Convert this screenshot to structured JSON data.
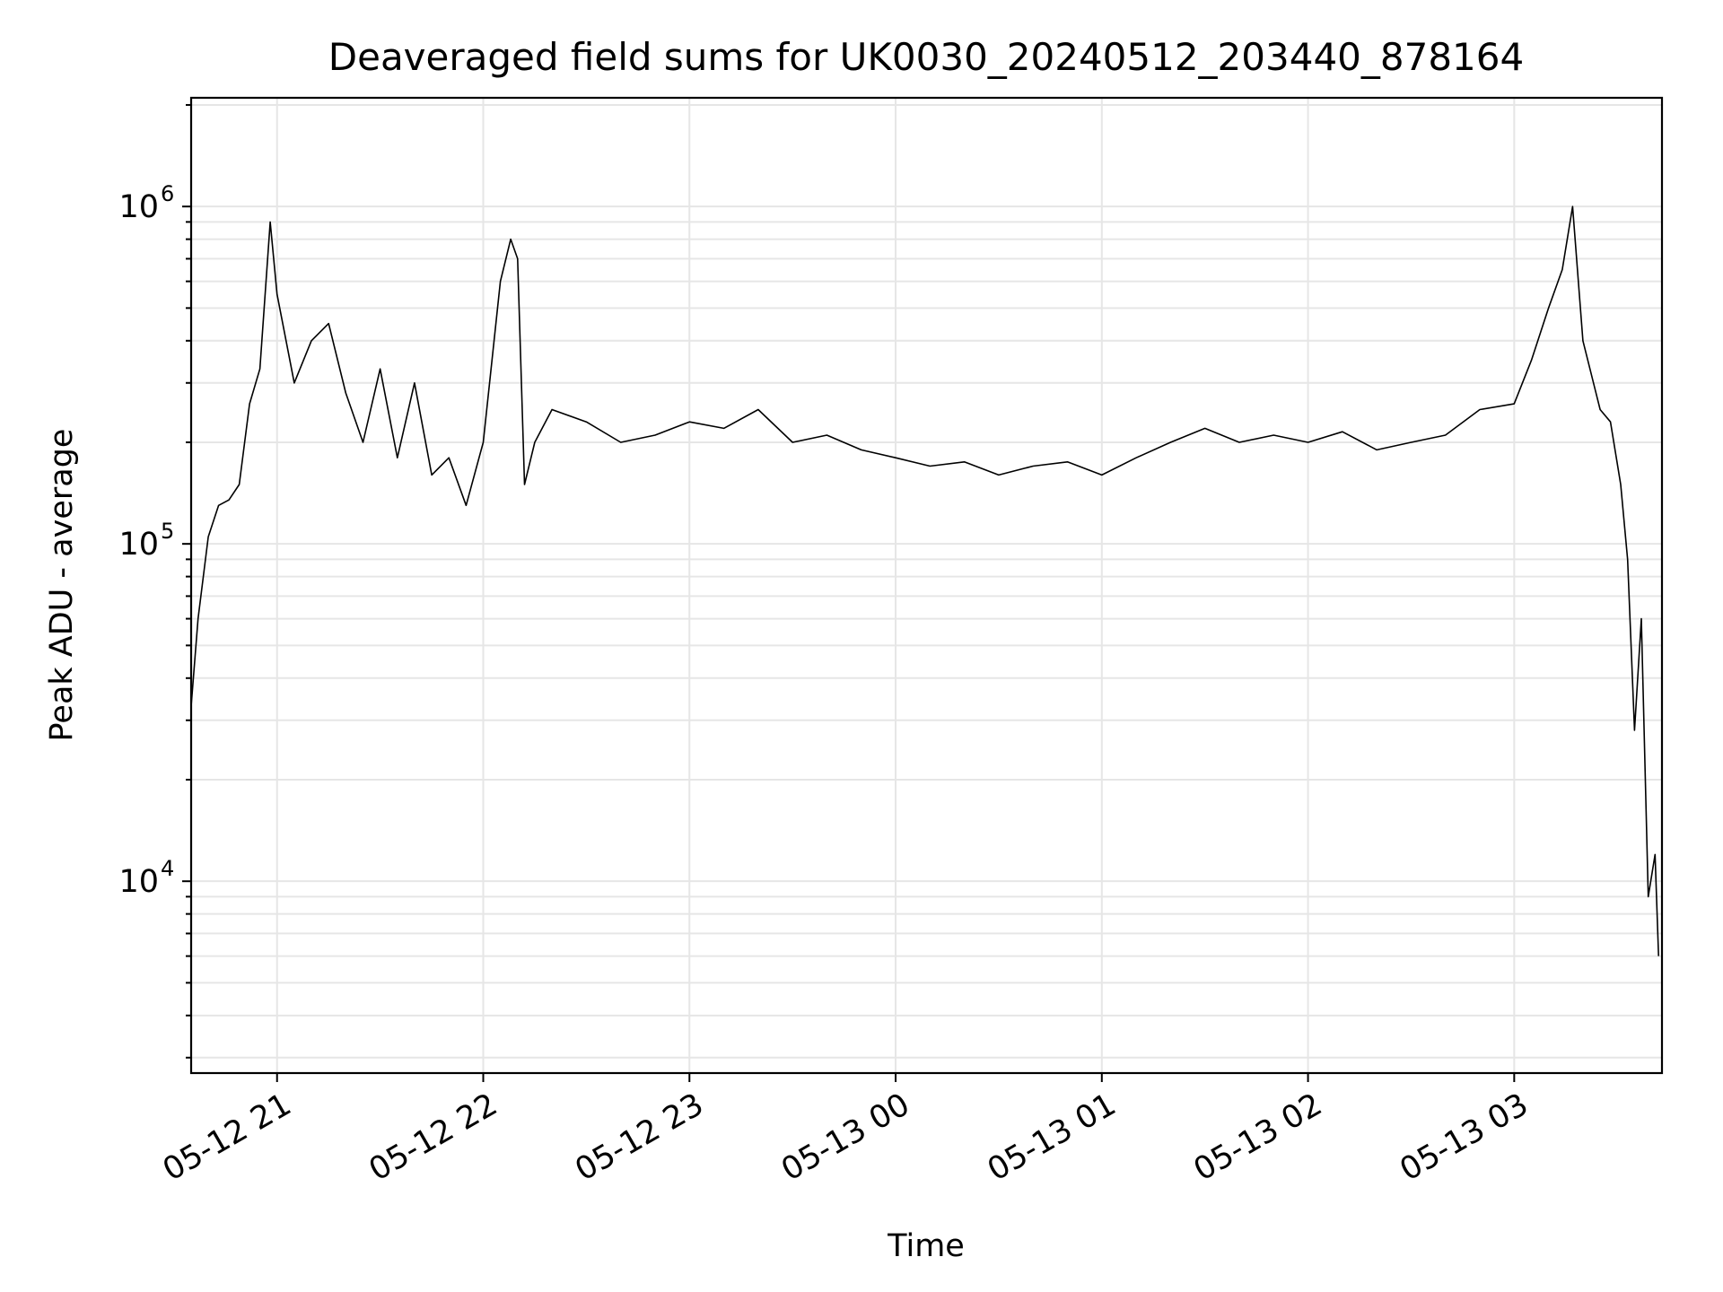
{
  "chart_data": {
    "type": "line",
    "title": "Deaveraged field sums for UK0030_20240512_203440_878164",
    "xlabel": "Time",
    "ylabel": "Peak ADU - average",
    "yscale": "log",
    "grid": true,
    "grid_minor_y": true,
    "line_color": "#000000",
    "xlim": [
      "2024-05-12 20:35",
      "2024-05-13 03:43"
    ],
    "ylim": [
      2700,
      2100000
    ],
    "xticks": [
      {
        "value": "2024-05-12 21:00",
        "label": "05-12 21"
      },
      {
        "value": "2024-05-12 22:00",
        "label": "05-12 22"
      },
      {
        "value": "2024-05-12 23:00",
        "label": "05-12 23"
      },
      {
        "value": "2024-05-13 00:00",
        "label": "05-13 00"
      },
      {
        "value": "2024-05-13 01:00",
        "label": "05-13 01"
      },
      {
        "value": "2024-05-13 02:00",
        "label": "05-13 02"
      },
      {
        "value": "2024-05-13 03:00",
        "label": "05-13 03"
      }
    ],
    "yticks": [
      {
        "value": 10000,
        "base": "10",
        "exp": "4"
      },
      {
        "value": 100000,
        "base": "10",
        "exp": "5"
      },
      {
        "value": 1000000,
        "base": "10",
        "exp": "6"
      }
    ],
    "series": [
      {
        "x": [
          "2024-05-12 20:35",
          "2024-05-12 20:37",
          "2024-05-12 20:40",
          "2024-05-12 20:43",
          "2024-05-12 20:46",
          "2024-05-12 20:49",
          "2024-05-12 20:52",
          "2024-05-12 20:55",
          "2024-05-12 20:58",
          "2024-05-12 21:00",
          "2024-05-12 21:05",
          "2024-05-12 21:10",
          "2024-05-12 21:15",
          "2024-05-12 21:20",
          "2024-05-12 21:25",
          "2024-05-12 21:30",
          "2024-05-12 21:35",
          "2024-05-12 21:40",
          "2024-05-12 21:45",
          "2024-05-12 21:50",
          "2024-05-12 21:55",
          "2024-05-12 22:00",
          "2024-05-12 22:05",
          "2024-05-12 22:08",
          "2024-05-12 22:10",
          "2024-05-12 22:12",
          "2024-05-12 22:15",
          "2024-05-12 22:20",
          "2024-05-12 22:30",
          "2024-05-12 22:40",
          "2024-05-12 22:50",
          "2024-05-12 23:00",
          "2024-05-12 23:10",
          "2024-05-12 23:20",
          "2024-05-12 23:30",
          "2024-05-12 23:40",
          "2024-05-12 23:50",
          "2024-05-13 00:00",
          "2024-05-13 00:10",
          "2024-05-13 00:20",
          "2024-05-13 00:30",
          "2024-05-13 00:40",
          "2024-05-13 00:50",
          "2024-05-13 01:00",
          "2024-05-13 01:10",
          "2024-05-13 01:20",
          "2024-05-13 01:30",
          "2024-05-13 01:40",
          "2024-05-13 01:50",
          "2024-05-13 02:00",
          "2024-05-13 02:10",
          "2024-05-13 02:20",
          "2024-05-13 02:30",
          "2024-05-13 02:40",
          "2024-05-13 02:50",
          "2024-05-13 03:00",
          "2024-05-13 03:05",
          "2024-05-13 03:10",
          "2024-05-13 03:14",
          "2024-05-13 03:17",
          "2024-05-13 03:20",
          "2024-05-13 03:25",
          "2024-05-13 03:28",
          "2024-05-13 03:31",
          "2024-05-13 03:33",
          "2024-05-13 03:35",
          "2024-05-13 03:37",
          "2024-05-13 03:39",
          "2024-05-13 03:41",
          "2024-05-13 03:42"
        ],
        "y": [
          33000,
          60000,
          105000,
          130000,
          135000,
          150000,
          260000,
          330000,
          900000,
          550000,
          300000,
          400000,
          450000,
          280000,
          200000,
          330000,
          180000,
          300000,
          160000,
          180000,
          130000,
          200000,
          600000,
          800000,
          700000,
          150000,
          200000,
          250000,
          230000,
          200000,
          210000,
          230000,
          220000,
          250000,
          200000,
          210000,
          190000,
          180000,
          170000,
          175000,
          160000,
          170000,
          175000,
          160000,
          180000,
          200000,
          220000,
          200000,
          210000,
          200000,
          215000,
          190000,
          200000,
          210000,
          250000,
          260000,
          350000,
          500000,
          650000,
          1000000,
          400000,
          250000,
          230000,
          150000,
          90000,
          28000,
          60000,
          9000,
          12000,
          6000
        ]
      }
    ]
  }
}
